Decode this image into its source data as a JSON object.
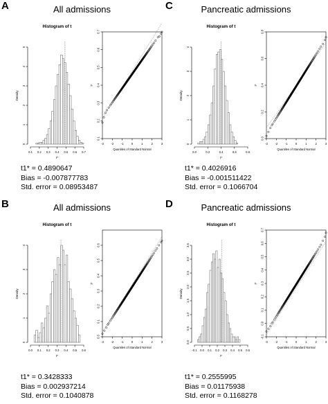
{
  "panels": [
    {
      "letter": "A",
      "title": "All admissions",
      "stats": {
        "t1": "t1* = 0.4890647",
        "bias": "Bias = -0.007877783",
        "se": "Std. error = 0.08953487"
      }
    },
    {
      "letter": "C",
      "title": "Pancreatic admissions",
      "stats": {
        "t1": "t1* = 0.4026916",
        "bias": "Bias = -0.001511422",
        "se": "Std. error = 0.1066704"
      }
    },
    {
      "letter": "B",
      "title": "All admissions",
      "stats": {
        "t1": "t1* = 0.3428333",
        "bias": "Bias = 0.002937214",
        "se": "Std. error = 0.1040878"
      }
    },
    {
      "letter": "D",
      "title": "Pancreatic admissions",
      "stats": {
        "t1": "t1* = 0.2555995",
        "bias": "Bias = 0.01175938",
        "se": "Std. error = 0.1168278"
      }
    }
  ],
  "chart_data": [
    {
      "panel": "A",
      "type": "bar",
      "subtype": "histogram",
      "title": "Histogram of t",
      "xlabel": "t*",
      "ylabel": "Density",
      "xlim": [
        0.1,
        0.7
      ],
      "ylim": [
        0,
        5
      ],
      "xticks": [
        "0.1",
        "0.2",
        "0.3",
        "0.4",
        "0.5",
        "0.6",
        "0.7"
      ],
      "yticks": [
        "0",
        "1",
        "2",
        "3",
        "4",
        "5"
      ],
      "bin_width": 0.02,
      "bins_start": 0.16,
      "values": [
        0.05,
        0.05,
        0.1,
        0.1,
        0.2,
        0.3,
        0.5,
        0.8,
        1.2,
        1.7,
        2.3,
        3.0,
        3.6,
        4.1,
        4.6,
        4.4,
        4.2,
        3.7,
        3.1,
        2.5,
        1.8,
        1.2,
        0.7,
        0.4,
        0.2,
        0.1,
        0.05
      ],
      "reference_line": 0.489
    },
    {
      "panel": "A",
      "type": "scatter",
      "subtype": "qq",
      "xlabel": "Quantiles of Standard Normal",
      "ylabel": "t*",
      "xlim": [
        -3,
        3
      ],
      "ylim": [
        0.1,
        0.7
      ],
      "xticks": [
        "-3",
        "-2",
        "-1",
        "0",
        "1",
        "2",
        "3"
      ],
      "yticks": [
        "0.1",
        "0.2",
        "0.3",
        "0.4",
        "0.5",
        "0.6",
        "0.7"
      ],
      "mean": 0.481,
      "sd": 0.0895,
      "lower_tail": [
        [
          -3.0,
          0.19
        ],
        [
          -2.85,
          0.22
        ],
        [
          -2.7,
          0.245
        ],
        [
          -2.55,
          0.26
        ]
      ],
      "upper_tail": [
        [
          2.6,
          0.67
        ],
        [
          2.75,
          0.675
        ],
        [
          2.9,
          0.69
        ],
        [
          3.0,
          0.7
        ]
      ]
    },
    {
      "panel": "C",
      "type": "bar",
      "subtype": "histogram",
      "title": "Histogram of t",
      "xlabel": "t*",
      "ylabel": "Density",
      "xlim": [
        0.0,
        0.8
      ],
      "ylim": [
        0,
        4
      ],
      "xticks": [
        "0.0",
        "0.2",
        "0.4",
        "0.6",
        "0.8"
      ],
      "yticks": [
        "0",
        "1",
        "2",
        "3",
        "4"
      ],
      "bin_width": 0.025,
      "bins_start": 0.05,
      "values": [
        0.05,
        0.1,
        0.1,
        0.2,
        0.3,
        0.5,
        0.8,
        1.2,
        1.7,
        2.4,
        3.1,
        3.7,
        3.8,
        3.9,
        3.5,
        3.0,
        2.4,
        1.8,
        1.3,
        0.8,
        0.5,
        0.3,
        0.15,
        0.05
      ],
      "reference_line": 0.403
    },
    {
      "panel": "C",
      "type": "scatter",
      "subtype": "qq",
      "xlabel": "Quantiles of Standard Normal",
      "ylabel": "t*",
      "xlim": [
        -3,
        3
      ],
      "ylim": [
        0.0,
        0.8
      ],
      "xticks": [
        "-3",
        "-2",
        "-1",
        "0",
        "1",
        "2",
        "3"
      ],
      "yticks": [
        "0.0",
        "0.2",
        "0.4",
        "0.6",
        "0.8"
      ],
      "mean": 0.4,
      "sd": 0.1066,
      "lower_tail": [
        [
          -3.0,
          0.02
        ],
        [
          -2.8,
          0.05
        ],
        [
          -2.6,
          0.08
        ],
        [
          -2.45,
          0.1
        ]
      ],
      "upper_tail": [
        [
          2.5,
          0.69
        ],
        [
          2.7,
          0.71
        ],
        [
          2.9,
          0.74
        ],
        [
          3.0,
          0.76
        ]
      ]
    },
    {
      "panel": "B",
      "type": "bar",
      "subtype": "histogram",
      "title": "Histogram of t",
      "xlabel": "t*",
      "ylabel": "Density",
      "xlim": [
        0.0,
        0.6
      ],
      "ylim": [
        0,
        4
      ],
      "xticks": [
        "0.0",
        "0.1",
        "0.2",
        "0.3",
        "0.4",
        "0.5",
        "0.6"
      ],
      "yticks": [
        "0",
        "1",
        "2",
        "3",
        "4"
      ],
      "bin_width": 0.02,
      "bins_start": 0.04,
      "values": [
        0.3,
        0.5,
        0.2,
        0.4,
        0.8,
        0.6,
        1.0,
        1.5,
        1.2,
        2.0,
        2.5,
        3.0,
        2.8,
        3.5,
        3.2,
        4.0,
        3.8,
        3.2,
        3.6,
        2.5,
        2.2,
        1.8,
        1.3,
        1.0,
        0.7,
        0.3
      ],
      "reference_line": 0.343
    },
    {
      "panel": "B",
      "type": "scatter",
      "subtype": "qq",
      "xlabel": "Quantiles of Standard Normal",
      "ylabel": "t*",
      "xlim": [
        -3,
        3
      ],
      "ylim": [
        0.0,
        0.7
      ],
      "xticks": [
        "-3",
        "-2",
        "-1",
        "0",
        "1",
        "2",
        "3"
      ],
      "yticks": [
        "0.0",
        "0.1",
        "0.2",
        "0.3",
        "0.4",
        "0.5",
        "0.6"
      ],
      "mean": 0.345,
      "sd": 0.104,
      "lower_tail": [
        [
          -3.0,
          0.02
        ],
        [
          -2.8,
          0.04
        ],
        [
          -2.6,
          0.06
        ],
        [
          -2.45,
          0.08
        ]
      ],
      "upper_tail": [
        [
          2.5,
          0.58
        ],
        [
          2.7,
          0.6
        ],
        [
          2.9,
          0.62
        ],
        [
          3.0,
          0.63
        ]
      ]
    },
    {
      "panel": "D",
      "type": "bar",
      "subtype": "histogram",
      "title": "Histogram of t",
      "xlabel": "t*",
      "ylabel": "Density",
      "xlim": [
        -0.1,
        0.6
      ],
      "ylim": [
        0,
        3.5
      ],
      "xticks": [
        "-0.1",
        "0.0",
        "0.1",
        "0.2",
        "0.3",
        "0.4",
        "0.5",
        "0.6"
      ],
      "yticks": [
        "0.0",
        "0.5",
        "1.0",
        "1.5",
        "2.0",
        "2.5",
        "3.0",
        "3.5"
      ],
      "bin_width": 0.02,
      "bins_start": -0.06,
      "values": [
        0.1,
        0.2,
        0.3,
        0.6,
        0.9,
        1.2,
        1.8,
        2.1,
        2.6,
        2.9,
        3.2,
        3.0,
        3.3,
        2.7,
        3.0,
        2.5,
        2.3,
        1.8,
        1.5,
        1.0,
        0.7,
        0.5,
        0.3,
        0.2,
        0.2,
        0.1,
        0.2,
        0.1
      ],
      "reference_line": 0.256
    },
    {
      "panel": "D",
      "type": "scatter",
      "subtype": "qq",
      "xlabel": "Quantiles of Standard Normal",
      "ylabel": "t*",
      "xlim": [
        -3,
        3
      ],
      "ylim": [
        -0.1,
        0.7
      ],
      "xticks": [
        "-3",
        "-2",
        "-1",
        "0",
        "1",
        "2",
        "3"
      ],
      "yticks": [
        "-0.1",
        "0.0",
        "0.1",
        "0.2",
        "0.3",
        "0.4",
        "0.5",
        "0.6",
        "0.7"
      ],
      "mean": 0.265,
      "sd": 0.1168,
      "lower_tail": [
        [
          -3.0,
          -0.06
        ],
        [
          -2.8,
          -0.04
        ],
        [
          -2.6,
          -0.02
        ],
        [
          -2.45,
          0.0
        ]
      ],
      "upper_tail": [
        [
          2.5,
          0.59
        ],
        [
          2.7,
          0.62
        ],
        [
          2.9,
          0.65
        ],
        [
          3.0,
          0.68
        ]
      ]
    }
  ]
}
